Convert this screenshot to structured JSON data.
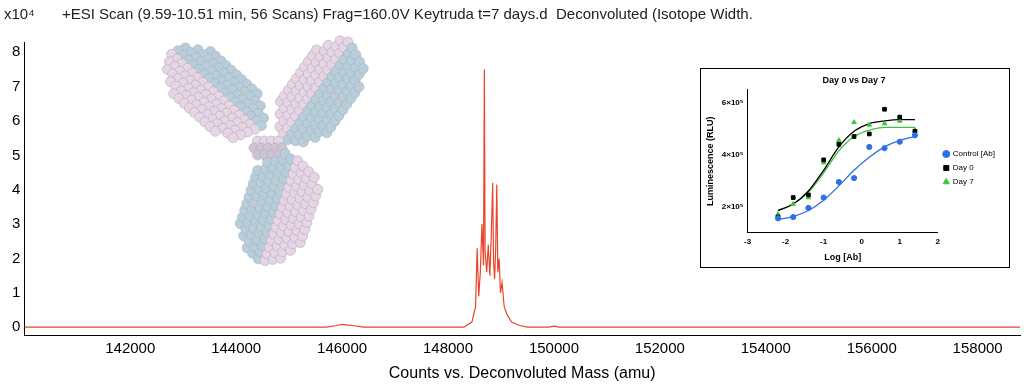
{
  "chart_data": [
    {
      "type": "line",
      "title": "+ESI Scan (9.59-10.51 min, 56 Scans) Frag=160.0V Keytruda t=7 days.d  Deconvoluted (Isotope Width.",
      "y_label": "x10⁴",
      "x_label": "Counts vs. Deconvoluted Mass (amu)",
      "x": [
        140000,
        145700,
        145900,
        146000,
        146100,
        146200,
        146400,
        148300,
        148450,
        148520,
        148550,
        148580,
        148610,
        148640,
        148670,
        148686,
        148700,
        148730,
        148760,
        148790,
        148815,
        148843,
        148860,
        148880,
        148900,
        148921,
        148940,
        148965,
        148990,
        149020,
        149060,
        149120,
        149200,
        149350,
        149500,
        149900,
        150000,
        150100,
        158800
      ],
      "values": [
        0,
        0,
        0.05,
        0.08,
        0.06,
        0.05,
        0,
        0,
        0.15,
        0.6,
        2.3,
        0.9,
        1.6,
        3.0,
        1.8,
        7.5,
        2.2,
        1.6,
        2.4,
        1.5,
        2.6,
        4.2,
        1.9,
        1.4,
        2.3,
        4.15,
        1.6,
        2.0,
        1.0,
        1.3,
        0.6,
        0.35,
        0.15,
        0.05,
        0,
        0,
        0.03,
        0,
        0
      ],
      "color": "#e8452c",
      "xlim": [
        140000,
        158800
      ],
      "xticks": [
        142000,
        144000,
        146000,
        148000,
        150000,
        152000,
        154000,
        156000,
        158000
      ],
      "ylim": [
        -0.25,
        8.3
      ],
      "yticks": [
        0,
        1,
        2,
        3,
        4,
        5,
        6,
        7,
        8
      ],
      "grid": false
    },
    {
      "type": "scatter",
      "title": "Day 0 vs Day 7",
      "x_label": "Log [Ab]",
      "y_label": "Luminescence (RLU)",
      "x": [
        -2.2,
        -1.8,
        -1.4,
        -1.0,
        -0.6,
        -0.2,
        0.2,
        0.6,
        1.0,
        1.4
      ],
      "series": [
        {
          "name": "Control [Ab]",
          "color": "#2f6fe8",
          "marker": "circle",
          "line_style": "solid",
          "values": [
            155000,
            160000,
            195000,
            235000,
            295000,
            310000,
            430000,
            425000,
            450000,
            475000
          ],
          "curve": [
            150000,
            162000,
            185000,
            225000,
            280000,
            340000,
            390000,
            430000,
            455000,
            470000
          ]
        },
        {
          "name": "Day 0",
          "color": "#000000",
          "marker": "square",
          "line_style": "solid",
          "values": [
            160000,
            235000,
            245000,
            380000,
            440000,
            470000,
            480000,
            575000,
            545000,
            490000
          ],
          "curve": [
            185000,
            210000,
            260000,
            340000,
            430000,
            490000,
            520000,
            530000,
            535000,
            535000
          ]
        },
        {
          "name": "Day 7",
          "color": "#3cc43c",
          "marker": "triangle",
          "line_style": "solid",
          "values": [
            170000,
            210000,
            235000,
            370000,
            455000,
            525000,
            515000,
            520000,
            530000,
            495000
          ],
          "curve": [
            185000,
            210000,
            255000,
            330000,
            415000,
            470000,
            495000,
            505000,
            505000,
            505000
          ]
        }
      ],
      "xlim": [
        -3,
        2
      ],
      "xticks": [
        -3,
        -2,
        -1,
        0,
        1,
        2
      ],
      "ylim": [
        100000,
        650000
      ],
      "yticks": [
        {
          "value": 200000,
          "label": "2×10⁵"
        },
        {
          "value": 400000,
          "label": "4×10⁵"
        },
        {
          "value": 600000,
          "label": "6×10⁵"
        }
      ],
      "legend": "right",
      "grid": false
    }
  ]
}
